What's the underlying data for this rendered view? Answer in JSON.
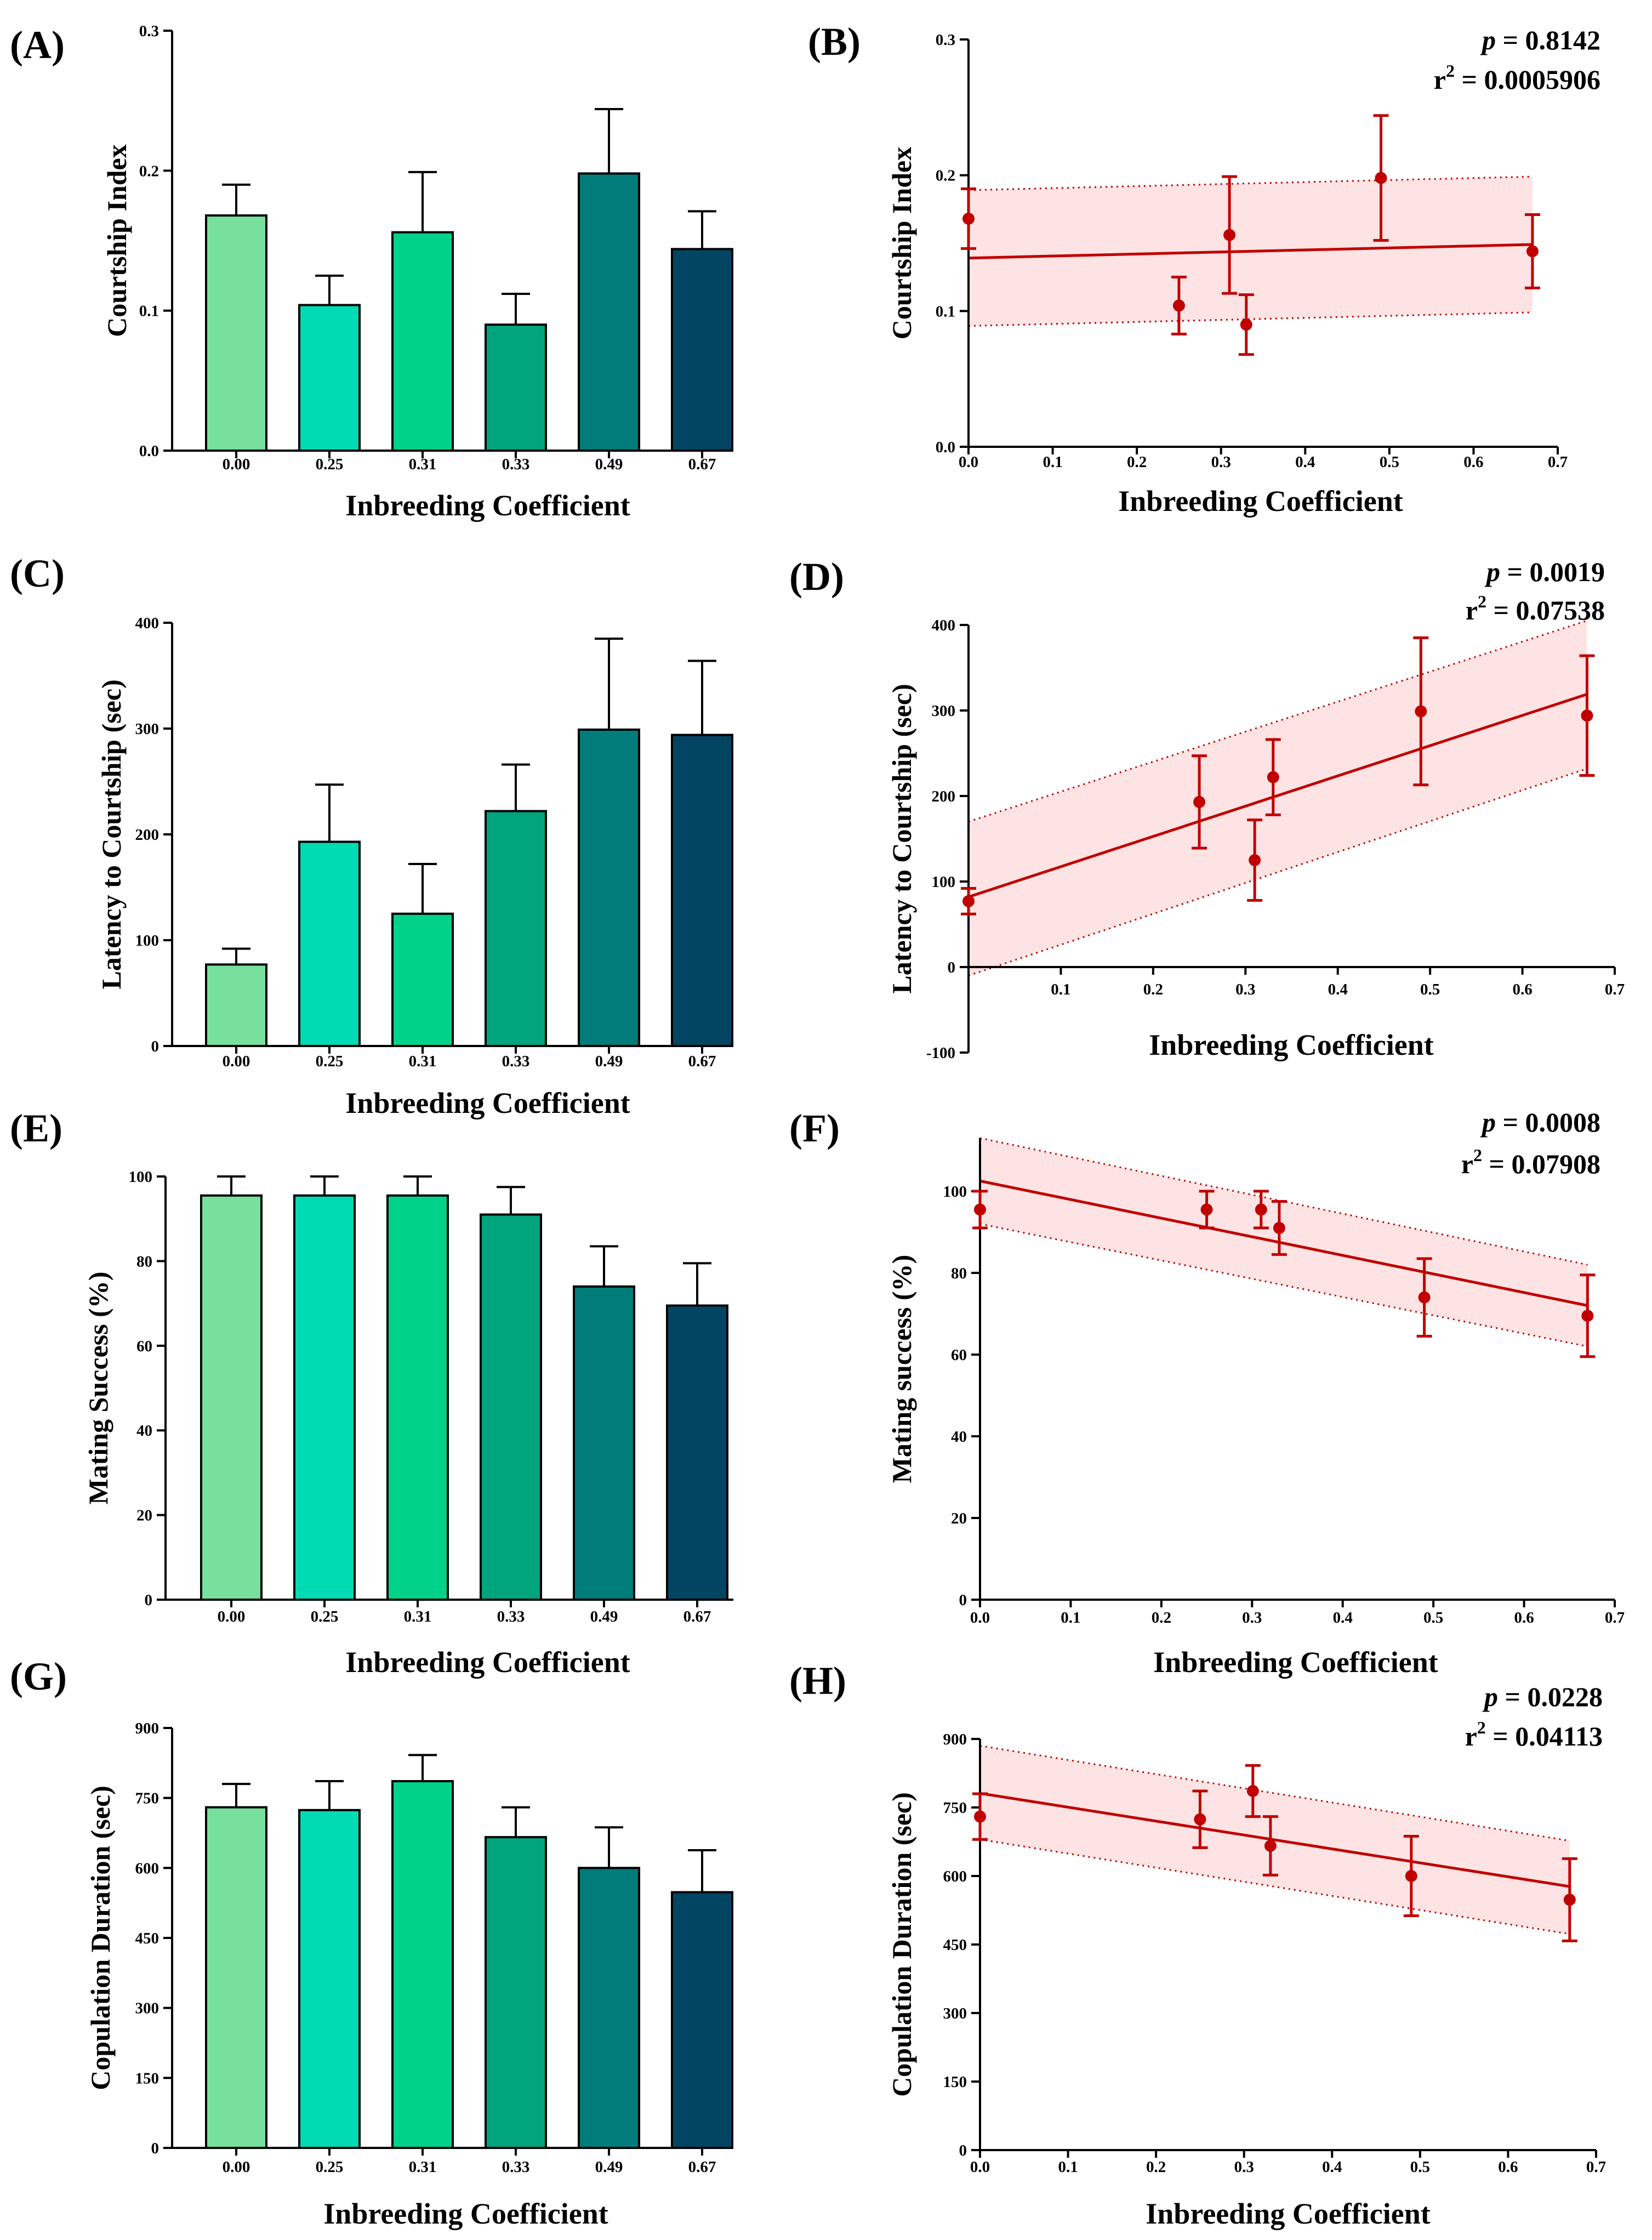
{
  "figure": {
    "xlabel": "Inbreeding Coefficient",
    "bar_colors": [
      "#76E09C",
      "#00DBB4",
      "#00D28A",
      "#00A57E",
      "#007C7B",
      "#024563"
    ],
    "fit_color": "#C00000",
    "band_color": "#FDE3E3"
  },
  "chart_data": [
    {
      "panel": "(A)",
      "type": "bar",
      "title": "",
      "xlabel": "Inbreeding Coefficient",
      "ylabel": "Courtship Index",
      "categories": [
        "0.00",
        "0.25",
        "0.31",
        "0.33",
        "0.49",
        "0.67"
      ],
      "values": [
        0.168,
        0.104,
        0.156,
        0.09,
        0.198,
        0.144
      ],
      "errors": [
        0.022,
        0.021,
        0.043,
        0.022,
        0.046,
        0.027
      ],
      "ylim": [
        0,
        0.3
      ],
      "yticks": [
        0,
        0.1,
        0.2,
        0.3
      ],
      "ytick_labels": [
        "0.0",
        "0.1",
        "0.2",
        "0.3"
      ]
    },
    {
      "panel": "(B)",
      "type": "scatter",
      "xlabel": "Inbreeding Coefficient",
      "ylabel": "Courtship Index",
      "x": [
        0,
        0.25,
        0.31,
        0.33,
        0.49,
        0.67
      ],
      "y": [
        0.168,
        0.104,
        0.156,
        0.09,
        0.198,
        0.144
      ],
      "errors": [
        0.022,
        0.021,
        0.043,
        0.022,
        0.046,
        0.027
      ],
      "fit": {
        "x": [
          0,
          0.67
        ],
        "y": [
          0.139,
          0.149
        ],
        "ci_lower": [
          0.089,
          0.099
        ],
        "ci_upper": [
          0.189,
          0.199
        ]
      },
      "p_label": "p",
      "p_value": " = 0.8142",
      "r2_label": "r",
      "r2_sup": "2",
      "r2_value": " = 0.0005906",
      "xlim": [
        0,
        0.7
      ],
      "xticks": [
        0,
        0.1,
        0.2,
        0.3,
        0.4,
        0.5,
        0.6,
        0.7
      ],
      "xtick_labels": [
        "0.0",
        "0.1",
        "0.2",
        "0.3",
        "0.4",
        "0.5",
        "0.6",
        "0.7"
      ],
      "ylim": [
        0,
        0.3
      ],
      "yticks": [
        0,
        0.1,
        0.2,
        0.3
      ],
      "ytick_labels": [
        "0.0",
        "0.1",
        "0.2",
        "0.3"
      ]
    },
    {
      "panel": "(C)",
      "type": "bar",
      "xlabel": "Inbreeding Coefficient",
      "ylabel": "Latency to Courtship (sec)",
      "categories": [
        "0.00",
        "0.25",
        "0.31",
        "0.33",
        "0.49",
        "0.67"
      ],
      "values": [
        77,
        193,
        125,
        222,
        299,
        294
      ],
      "errors": [
        15,
        54,
        47,
        44,
        86,
        70
      ],
      "ylim": [
        0,
        400
      ],
      "yticks": [
        0,
        100,
        200,
        300,
        400
      ],
      "ytick_labels": [
        "0",
        "100",
        "200",
        "300",
        "400"
      ]
    },
    {
      "panel": "(D)",
      "type": "scatter",
      "xlabel": "Inbreeding Coefficient",
      "ylabel": "Latency to Courtship (sec)",
      "x": [
        0,
        0.25,
        0.31,
        0.33,
        0.49,
        0.67
      ],
      "y": [
        77,
        193,
        125,
        222,
        299,
        294
      ],
      "errors": [
        15,
        54,
        47,
        44,
        86,
        70
      ],
      "fit": {
        "x": [
          0,
          0.67
        ],
        "y": [
          82,
          319
        ],
        "ci_lower": [
          -10,
          232
        ],
        "ci_upper": [
          170,
          405
        ]
      },
      "p_label": "p",
      "p_value": " = 0.0019",
      "r2_label": "r",
      "r2_sup": "2",
      "r2_value": " = 0.07538",
      "xlim": [
        0,
        0.7
      ],
      "xticks": [
        0.1,
        0.2,
        0.3,
        0.4,
        0.5,
        0.6,
        0.7
      ],
      "xtick_labels": [
        "0.1",
        "0.2",
        "0.3",
        "0.4",
        "0.5",
        "0.6",
        "0.7"
      ],
      "ylim": [
        -100,
        400
      ],
      "yticks": [
        -100,
        0,
        100,
        200,
        300,
        400
      ],
      "ytick_labels": [
        "-100",
        "0",
        "100",
        "200",
        "300",
        "400"
      ]
    },
    {
      "panel": "(E)",
      "type": "bar",
      "xlabel": "Inbreeding Coefficient",
      "ylabel": "Mating Success (%)",
      "categories": [
        "0.00",
        "0.25",
        "0.31",
        "0.33",
        "0.49",
        "0.67"
      ],
      "values": [
        95.5,
        95.5,
        95.5,
        91,
        74,
        69.5
      ],
      "errors": [
        4.5,
        4.5,
        4.5,
        6.5,
        9.5,
        10
      ],
      "ylim": [
        0,
        100
      ],
      "yticks": [
        0,
        20,
        40,
        60,
        80,
        100
      ],
      "ytick_labels": [
        "0",
        "20",
        "40",
        "60",
        "80",
        "100"
      ]
    },
    {
      "panel": "(F)",
      "type": "scatter",
      "xlabel": "Inbreeding Coefficient",
      "ylabel": "Mating success (%)",
      "x": [
        0,
        0.25,
        0.31,
        0.33,
        0.49,
        0.67
      ],
      "y": [
        95.5,
        95.5,
        95.5,
        91,
        74,
        69.5
      ],
      "errors": [
        4.5,
        4.5,
        4.5,
        6.5,
        9.5,
        10
      ],
      "fit": {
        "x": [
          0,
          0.67
        ],
        "y": [
          102.5,
          72
        ],
        "ci_lower": [
          92,
          62
        ],
        "ci_upper": [
          113,
          82
        ]
      },
      "p_label": "p",
      "p_value": " = 0.0008",
      "r2_label": "r",
      "r2_sup": "2",
      "r2_value": " = 0.07908",
      "xlim": [
        0,
        0.7
      ],
      "xticks": [
        0,
        0.1,
        0.2,
        0.3,
        0.4,
        0.5,
        0.6,
        0.7
      ],
      "xtick_labels": [
        "0.0",
        "0.1",
        "0.2",
        "0.3",
        "0.4",
        "0.5",
        "0.6",
        "0.7"
      ],
      "ylim": [
        0,
        113
      ],
      "yticks": [
        0,
        20,
        40,
        60,
        80,
        100
      ],
      "ytick_labels": [
        "0",
        "20",
        "40",
        "60",
        "80",
        "100"
      ]
    },
    {
      "panel": "(G)",
      "type": "bar",
      "xlabel": "Inbreeding Coefficient",
      "ylabel": "Copulation Duration (sec)",
      "categories": [
        "0.00",
        "0.25",
        "0.31",
        "0.33",
        "0.49",
        "0.67"
      ],
      "values": [
        730,
        724,
        786,
        666,
        600,
        548
      ],
      "errors": [
        50,
        62,
        56,
        64,
        87,
        90
      ],
      "ylim": [
        0,
        900
      ],
      "yticks": [
        0,
        150,
        300,
        450,
        600,
        750,
        900
      ],
      "ytick_labels": [
        "0",
        "150",
        "300",
        "450",
        "600",
        "750",
        "900"
      ]
    },
    {
      "panel": "(H)",
      "type": "scatter",
      "xlabel": "Inbreeding Coefficient",
      "ylabel": "Copulation Duration (sec)",
      "x": [
        0,
        0.25,
        0.31,
        0.33,
        0.49,
        0.67
      ],
      "y": [
        730,
        724,
        786,
        666,
        600,
        548
      ],
      "errors": [
        50,
        62,
        56,
        64,
        87,
        90
      ],
      "fit": {
        "x": [
          0,
          0.67
        ],
        "y": [
          781,
          577
        ],
        "ci_lower": [
          680,
          473
        ],
        "ci_upper": [
          885,
          677
        ]
      },
      "p_label": "p",
      "p_value": " = 0.0228",
      "r2_label": "r",
      "r2_sup": "2",
      "r2_value": " = 0.04113",
      "xlim": [
        0,
        0.7
      ],
      "xticks": [
        0,
        0.1,
        0.2,
        0.3,
        0.4,
        0.5,
        0.6,
        0.7
      ],
      "xtick_labels": [
        "0.0",
        "0.1",
        "0.2",
        "0.3",
        "0.4",
        "0.5",
        "0.6",
        "0.7"
      ],
      "ylim": [
        0,
        900
      ],
      "yticks": [
        0,
        150,
        300,
        450,
        600,
        750,
        900
      ],
      "ytick_labels": [
        "0",
        "150",
        "300",
        "450",
        "600",
        "750",
        "900"
      ]
    }
  ]
}
